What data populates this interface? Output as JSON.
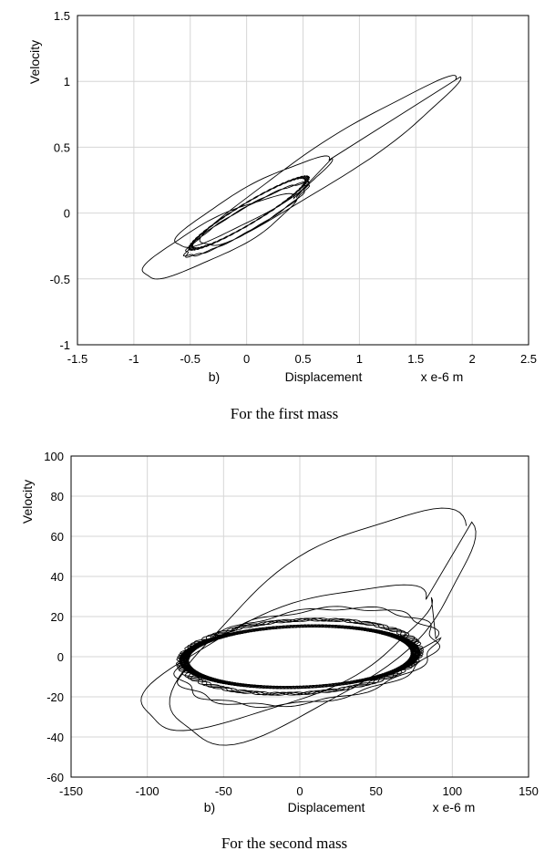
{
  "chart_data": [
    {
      "type": "line",
      "caption": "For the first mass",
      "panel_label": "b)",
      "xlabel": "Displacement",
      "x_unit": "x e-6 m",
      "ylabel": "Velocity",
      "xlim": [
        -1.5,
        2.5
      ],
      "ylim": [
        -1,
        1.5
      ],
      "xticks": [
        "-1.5",
        "-1",
        "-0.5",
        "0",
        "0.5",
        "1",
        "1.5",
        "2",
        "2.5"
      ],
      "yticks": [
        "1.5",
        "1",
        "0.5",
        "0",
        "-0.5",
        "-1"
      ],
      "grid": true,
      "series": [
        {
          "loops": [
            {
              "cx": 0.72,
              "cy": 0.38,
              "rx": 1.35,
              "ry": 0.17,
              "angle": 33,
              "turns": 1
            },
            {
              "cx": 0.05,
              "cy": 0.08,
              "rx": 0.78,
              "ry": 0.14,
              "angle": 29,
              "turns": 1
            },
            {
              "cx": -0.25,
              "cy": -0.18,
              "rx": 0.75,
              "ry": 0.16,
              "angle": 27,
              "turns": 1
            },
            {
              "cx": 0.0,
              "cy": -0.05,
              "rx": 0.62,
              "ry": 0.1,
              "angle": 30,
              "turns": 2
            },
            {
              "cx": 0.02,
              "cy": 0.0,
              "rx": 0.6,
              "ry": 0.09,
              "angle": 31,
              "turns": 5
            }
          ]
        }
      ]
    },
    {
      "type": "line",
      "caption": "For the second mass",
      "panel_label": "b)",
      "xlabel": "Displacement",
      "x_unit": "x e-6 m",
      "ylabel": "Velocity",
      "xlim": [
        -150,
        150
      ],
      "ylim": [
        -60,
        100
      ],
      "xticks": [
        "-150",
        "-100",
        "-50",
        "0",
        "50",
        "100",
        "150"
      ],
      "yticks": [
        "100",
        "80",
        "60",
        "40",
        "20",
        "0",
        "-20",
        "-40",
        "-60"
      ],
      "grid": true,
      "series": [
        {
          "loops": [
            {
              "cx": 15,
              "cy": 15,
              "rx": 115,
              "ry": 45,
              "angle": 35,
              "turns": 1
            },
            {
              "cx": -10,
              "cy": 0,
              "rx": 100,
              "ry": 30,
              "angle": 22,
              "turns": 1
            },
            {
              "cx": 5,
              "cy": 0,
              "rx": 85,
              "ry": 30,
              "angle": 8,
              "turns": 2
            },
            {
              "cx": 0,
              "cy": 0,
              "rx": 78,
              "ry": 24,
              "angle": 3,
              "turns": 4
            },
            {
              "cx": 0,
              "cy": 0,
              "rx": 76,
              "ry": 20,
              "angle": 2,
              "turns": 8
            }
          ]
        }
      ]
    }
  ]
}
